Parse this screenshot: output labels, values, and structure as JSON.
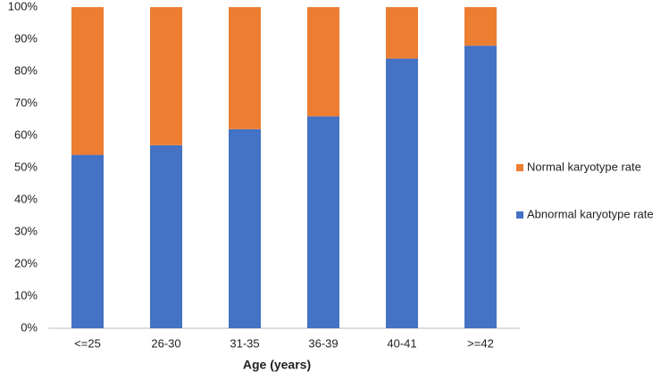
{
  "chart_data": {
    "type": "stacked_bar",
    "x_label": "Age (years)",
    "categories": [
      "<=25",
      "26-30",
      "31-35",
      "36-39",
      "40-41",
      ">=42"
    ],
    "series": [
      {
        "name": "Abnormal karyotype rate",
        "color": "#4472c4",
        "values": [
          54,
          57,
          62,
          66,
          84,
          88
        ]
      },
      {
        "name": "Normal karyotype rate",
        "color": "#ed7d31",
        "values": [
          46,
          43,
          38,
          34,
          16,
          12
        ]
      }
    ],
    "ylim": [
      0,
      100
    ],
    "yticks": [
      {
        "value": 0,
        "label": "0%"
      },
      {
        "value": 10,
        "label": "10%"
      },
      {
        "value": 20,
        "label": "20%"
      },
      {
        "value": 30,
        "label": "30%"
      },
      {
        "value": 40,
        "label": "40%"
      },
      {
        "value": 50,
        "label": "50%"
      },
      {
        "value": 60,
        "label": "60%"
      },
      {
        "value": 70,
        "label": "70%"
      },
      {
        "value": 80,
        "label": "80%"
      },
      {
        "value": 90,
        "label": "90%"
      },
      {
        "value": 100,
        "label": "100%"
      }
    ],
    "grid": false,
    "legend": "right"
  }
}
